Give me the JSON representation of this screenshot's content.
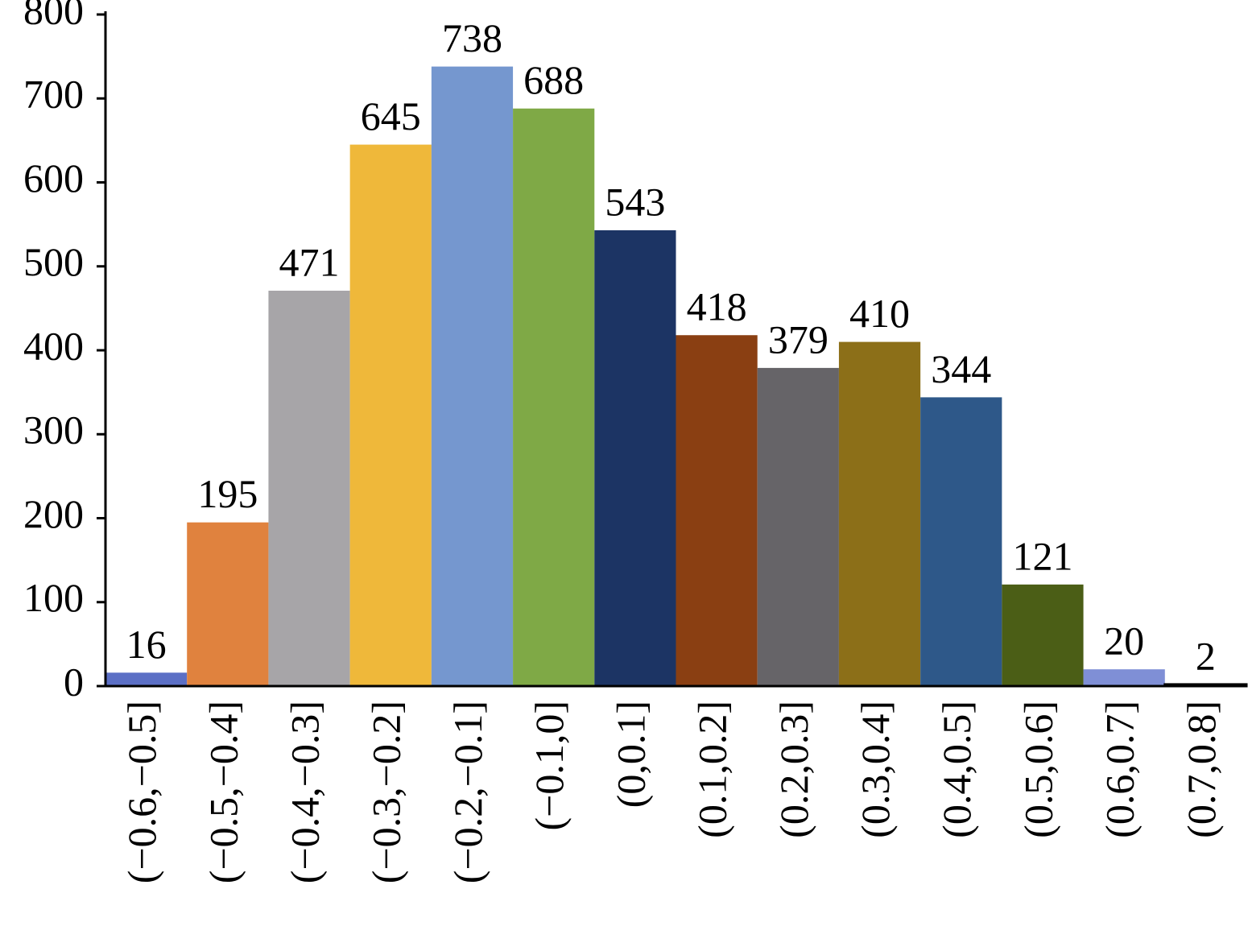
{
  "chart_data": {
    "type": "bar",
    "categories": [
      "(−0.6,−0.5]",
      "(−0.5,−0.4]",
      "(−0.4,−0.3]",
      "(−0.3,−0.2]",
      "(−0.2,−0.1]",
      "(−0.1,0]",
      "(0,0.1]",
      "(0.1,0.2]",
      "(0.2,0.3]",
      "(0.3,0.4]",
      "(0.4,0.5]",
      "(0.5,0.6]",
      "(0.6,0.7]",
      "(0.7,0.8]"
    ],
    "values": [
      16,
      195,
      471,
      645,
      738,
      688,
      543,
      418,
      379,
      410,
      344,
      121,
      20,
      2
    ],
    "colors": [
      "#5b6fc5",
      "#e0823e",
      "#a7a5a8",
      "#efb83a",
      "#7597cf",
      "#7fa946",
      "#1c3464",
      "#8a3f12",
      "#666468",
      "#8c6f18",
      "#2e5889",
      "#4b5e16",
      "#7f8fd6",
      "#ffffff"
    ],
    "ylim": [
      0,
      800
    ],
    "yticks": [
      0,
      100,
      200,
      300,
      400,
      500,
      600,
      700,
      800
    ],
    "grid": false
  }
}
